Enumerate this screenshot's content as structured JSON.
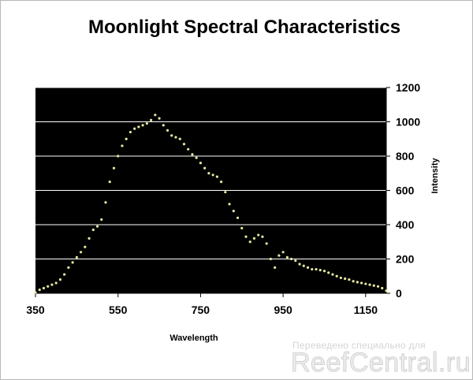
{
  "chart_data": {
    "type": "scatter",
    "title": "Moonlight Spectral Characteristics",
    "xlabel": "Wavelength",
    "ylabel": "Intensity",
    "xlim": [
      350,
      1200
    ],
    "ylim": [
      0,
      1200
    ],
    "xticks": [
      350,
      550,
      750,
      950,
      1150
    ],
    "yticks": [
      0,
      200,
      400,
      600,
      800,
      1000,
      1200
    ],
    "y_axis_side": "right",
    "grid": "horizontal",
    "legend": "none",
    "plot_background": "#000000",
    "gridline_color": "#ffffff",
    "marker_color": "#e6e6a0",
    "series": [
      {
        "x": [
          350,
          360,
          370,
          380,
          390,
          400,
          410,
          420,
          430,
          440,
          450,
          460,
          470,
          480,
          490,
          500,
          510,
          520,
          530,
          540,
          550,
          560,
          570,
          580,
          590,
          600,
          610,
          620,
          630,
          640,
          650,
          660,
          670,
          680,
          690,
          700,
          710,
          720,
          730,
          740,
          750,
          760,
          770,
          780,
          790,
          800,
          810,
          820,
          830,
          840,
          850,
          860,
          870,
          880,
          890,
          900,
          910,
          920,
          930,
          940,
          950,
          960,
          970,
          980,
          990,
          1000,
          1010,
          1020,
          1030,
          1040,
          1050,
          1060,
          1070,
          1080,
          1090,
          1100,
          1110,
          1120,
          1130,
          1140,
          1150,
          1160,
          1170,
          1180,
          1190,
          1200
        ],
        "y": [
          5,
          20,
          30,
          40,
          50,
          60,
          80,
          110,
          150,
          180,
          210,
          240,
          270,
          320,
          370,
          390,
          430,
          530,
          650,
          730,
          800,
          860,
          900,
          940,
          960,
          970,
          980,
          990,
          1010,
          1040,
          1020,
          980,
          950,
          920,
          910,
          900,
          870,
          840,
          810,
          790,
          760,
          730,
          700,
          690,
          680,
          650,
          590,
          520,
          480,
          440,
          380,
          330,
          300,
          320,
          340,
          330,
          290,
          200,
          150,
          220,
          240,
          210,
          200,
          190,
          170,
          160,
          150,
          140,
          140,
          135,
          130,
          120,
          110,
          100,
          90,
          85,
          80,
          70,
          65,
          60,
          55,
          50,
          45,
          40,
          30,
          15
        ]
      }
    ]
  },
  "watermark": {
    "small": "Переведено специально для",
    "big": "ReefCentral.ru"
  }
}
